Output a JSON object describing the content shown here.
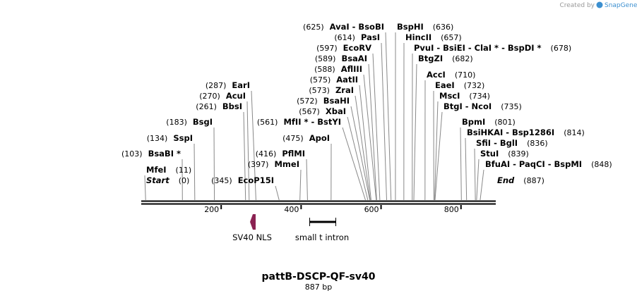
{
  "credit": {
    "prefix": "Created by",
    "brand": "SnapGene",
    "brand_color": "#3b8fd0"
  },
  "title": "pattB-DSCP-QF-sv40",
  "length_label": "887 bp",
  "sequence_length": 887,
  "ticks": [
    {
      "value": 200,
      "label": "200"
    },
    {
      "value": 400,
      "label": "400"
    },
    {
      "value": 600,
      "label": "600"
    },
    {
      "value": 800,
      "label": "800"
    }
  ],
  "features": [
    {
      "name": "SV40 NLS",
      "type": "arrow",
      "color": "#8b2252"
    },
    {
      "name": "small t intron",
      "type": "bar",
      "color": "#000000"
    }
  ],
  "sites": [
    {
      "pos": 0,
      "pos_label": "(0)",
      "name": "Start",
      "special": true
    },
    {
      "pos": 11,
      "pos_label": "(11)",
      "name": "MfeI"
    },
    {
      "pos": 103,
      "pos_label": "(103)",
      "name": "BsaBI *"
    },
    {
      "pos": 134,
      "pos_label": "(134)",
      "name": "SspI"
    },
    {
      "pos": 183,
      "pos_label": "(183)",
      "name": "BsgI"
    },
    {
      "pos": 261,
      "pos_label": "(261)",
      "name": "BbsI"
    },
    {
      "pos": 270,
      "pos_label": "(270)",
      "name": "AcuI"
    },
    {
      "pos": 287,
      "pos_label": "(287)",
      "name": "EarI"
    },
    {
      "pos": 345,
      "pos_label": "(345)",
      "name": "EcoP15I"
    },
    {
      "pos": 397,
      "pos_label": "(397)",
      "name": "MmeI"
    },
    {
      "pos": 416,
      "pos_label": "(416)",
      "name": "PflMI"
    },
    {
      "pos": 475,
      "pos_label": "(475)",
      "name": "ApoI"
    },
    {
      "pos": 561,
      "pos_label": "(561)",
      "name": "MfII * - BstYI"
    },
    {
      "pos": 567,
      "pos_label": "(567)",
      "name": "XbaI"
    },
    {
      "pos": 572,
      "pos_label": "(572)",
      "name": "BsaHI"
    },
    {
      "pos": 573,
      "pos_label": "(573)",
      "name": "ZraI"
    },
    {
      "pos": 575,
      "pos_label": "(575)",
      "name": "AatII"
    },
    {
      "pos": 588,
      "pos_label": "(588)",
      "name": "AflIII"
    },
    {
      "pos": 589,
      "pos_label": "(589)",
      "name": "BsaAI"
    },
    {
      "pos": 597,
      "pos_label": "(597)",
      "name": "EcoRV"
    },
    {
      "pos": 614,
      "pos_label": "(614)",
      "name": "PasI"
    },
    {
      "pos": 625,
      "pos_label": "(625)",
      "name": "AvaI - BsoBI"
    },
    {
      "pos": 636,
      "pos_label": "(636)",
      "name": "BspHI"
    },
    {
      "pos": 657,
      "pos_label": "(657)",
      "name": "HincII"
    },
    {
      "pos": 678,
      "pos_label": "(678)",
      "name": "PvuI - BsiEI - ClaI * - BspDI *"
    },
    {
      "pos": 682,
      "pos_label": "(682)",
      "name": "BtgZI"
    },
    {
      "pos": 710,
      "pos_label": "(710)",
      "name": "AccI"
    },
    {
      "pos": 732,
      "pos_label": "(732)",
      "name": "EaeI"
    },
    {
      "pos": 734,
      "pos_label": "(734)",
      "name": "MscI"
    },
    {
      "pos": 735,
      "pos_label": "(735)",
      "name": "BtgI - NcoI"
    },
    {
      "pos": 801,
      "pos_label": "(801)",
      "name": "BpmI"
    },
    {
      "pos": 814,
      "pos_label": "(814)",
      "name": "BsiHKAI - Bsp1286I"
    },
    {
      "pos": 836,
      "pos_label": "(836)",
      "name": "SfiI - BglI"
    },
    {
      "pos": 839,
      "pos_label": "(839)",
      "name": "StuI"
    },
    {
      "pos": 848,
      "pos_label": "(848)",
      "name": "BfuAI - PaqCI - BspMI"
    },
    {
      "pos": 887,
      "pos_label": "(887)",
      "name": "End",
      "special": true
    }
  ]
}
